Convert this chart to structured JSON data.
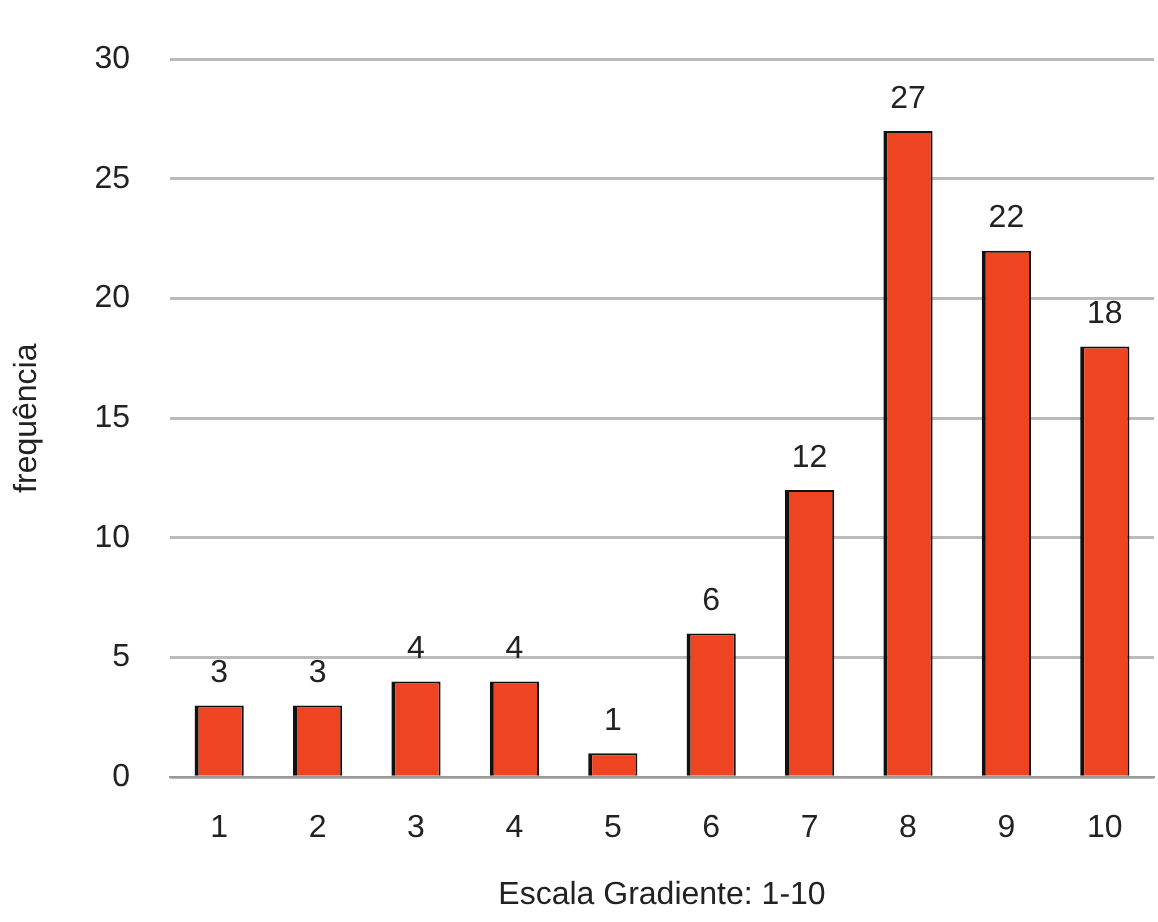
{
  "chart_data": {
    "type": "bar",
    "xlabel": "Escala Gradiente: 1-10",
    "ylabel": "frequência",
    "categories": [
      "1",
      "2",
      "3",
      "4",
      "5",
      "6",
      "7",
      "8",
      "9",
      "10"
    ],
    "values": [
      3,
      3,
      4,
      4,
      1,
      6,
      12,
      27,
      22,
      18
    ],
    "color": "#ee4422",
    "ylim": [
      0,
      30
    ],
    "yticks": [
      0,
      5,
      10,
      15,
      20,
      25,
      30
    ],
    "grid": "y",
    "data_labels": true
  }
}
